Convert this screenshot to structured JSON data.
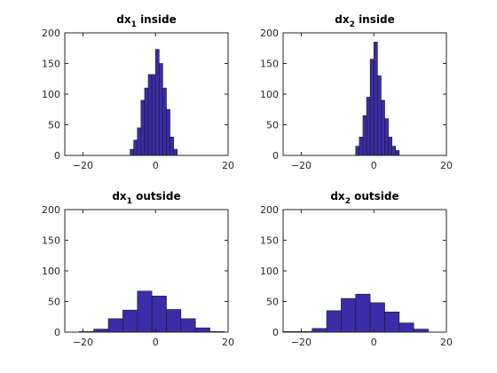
{
  "chart_data": [
    {
      "type": "bar",
      "title": {
        "base": "dx",
        "subscript": "1",
        "suffix": " inside"
      },
      "xlim": [
        -25,
        20
      ],
      "ylim": [
        0,
        200
      ],
      "xticks": [
        -20,
        0,
        20
      ],
      "yticks": [
        0,
        50,
        100,
        150,
        200
      ],
      "bar_color": "#3b2ca8",
      "bins": [
        {
          "from": -7,
          "to": -6,
          "value": 10
        },
        {
          "from": -6,
          "to": -5,
          "value": 25
        },
        {
          "from": -5,
          "to": -4,
          "value": 45
        },
        {
          "from": -4,
          "to": -3,
          "value": 90
        },
        {
          "from": -3,
          "to": -2,
          "value": 110
        },
        {
          "from": -2,
          "to": -1,
          "value": 132
        },
        {
          "from": -1,
          "to": 0,
          "value": 132
        },
        {
          "from": 0,
          "to": 1,
          "value": 173
        },
        {
          "from": 1,
          "to": 2,
          "value": 150
        },
        {
          "from": 2,
          "to": 3,
          "value": 110
        },
        {
          "from": 3,
          "to": 4,
          "value": 75
        },
        {
          "from": 4,
          "to": 5,
          "value": 30
        },
        {
          "from": 5,
          "to": 6,
          "value": 10
        }
      ]
    },
    {
      "type": "bar",
      "title": {
        "base": "dx",
        "subscript": "2",
        "suffix": " inside"
      },
      "xlim": [
        -25,
        20
      ],
      "ylim": [
        0,
        200
      ],
      "xticks": [
        -20,
        0,
        20
      ],
      "yticks": [
        0,
        50,
        100,
        150,
        200
      ],
      "bar_color": "#3b2ca8",
      "bins": [
        {
          "from": -5,
          "to": -4,
          "value": 15
        },
        {
          "from": -4,
          "to": -3,
          "value": 30
        },
        {
          "from": -3,
          "to": -2,
          "value": 65
        },
        {
          "from": -2,
          "to": -1,
          "value": 95
        },
        {
          "from": -1,
          "to": 0,
          "value": 157
        },
        {
          "from": 0,
          "to": 1,
          "value": 185
        },
        {
          "from": 1,
          "to": 2,
          "value": 130
        },
        {
          "from": 2,
          "to": 3,
          "value": 90
        },
        {
          "from": 3,
          "to": 4,
          "value": 60
        },
        {
          "from": 4,
          "to": 5,
          "value": 30
        },
        {
          "from": 5,
          "to": 6,
          "value": 15
        },
        {
          "from": 6,
          "to": 7,
          "value": 8
        }
      ]
    },
    {
      "type": "bar",
      "title": {
        "base": "dx",
        "subscript": "1",
        "suffix": " outside"
      },
      "xlim": [
        -25,
        20
      ],
      "ylim": [
        0,
        200
      ],
      "xticks": [
        -20,
        0,
        20
      ],
      "yticks": [
        0,
        50,
        100,
        150,
        200
      ],
      "bar_color": "#3b2ca8",
      "bins": [
        {
          "from": -21,
          "to": -17,
          "value": 1
        },
        {
          "from": -17,
          "to": -13,
          "value": 5
        },
        {
          "from": -13,
          "to": -9,
          "value": 22
        },
        {
          "from": -9,
          "to": -5,
          "value": 36
        },
        {
          "from": -5,
          "to": -1,
          "value": 67
        },
        {
          "from": -1,
          "to": 3,
          "value": 59
        },
        {
          "from": 3,
          "to": 7,
          "value": 37
        },
        {
          "from": 7,
          "to": 11,
          "value": 22
        },
        {
          "from": 11,
          "to": 15,
          "value": 7
        },
        {
          "from": 15,
          "to": 19,
          "value": 1
        }
      ]
    },
    {
      "type": "bar",
      "title": {
        "base": "dx",
        "subscript": "2",
        "suffix": " outside"
      },
      "xlim": [
        -25,
        20
      ],
      "ylim": [
        0,
        200
      ],
      "xticks": [
        -20,
        0,
        20
      ],
      "yticks": [
        0,
        50,
        100,
        150,
        200
      ],
      "bar_color": "#3b2ca8",
      "bins": [
        {
          "from": -25,
          "to": -21,
          "value": 1
        },
        {
          "from": -21,
          "to": -17,
          "value": 1
        },
        {
          "from": -17,
          "to": -13,
          "value": 6
        },
        {
          "from": -13,
          "to": -9,
          "value": 35
        },
        {
          "from": -9,
          "to": -5,
          "value": 55
        },
        {
          "from": -5,
          "to": -1,
          "value": 62
        },
        {
          "from": -1,
          "to": 3,
          "value": 48
        },
        {
          "from": 3,
          "to": 7,
          "value": 33
        },
        {
          "from": 7,
          "to": 11,
          "value": 15
        },
        {
          "from": 11,
          "to": 15,
          "value": 5
        }
      ]
    }
  ]
}
